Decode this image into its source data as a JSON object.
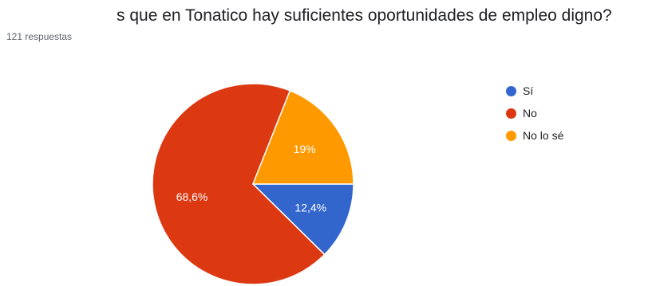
{
  "question": "s que en Tonatico hay suficientes oportunidades de empleo digno?",
  "responses": "121 respuestas",
  "colors": {
    "si": "#3366cc",
    "no": "#dc3912",
    "nolose": "#ff9900"
  },
  "chart_data": {
    "type": "pie",
    "title": "s que en Tonatico hay suficientes oportunidades de empleo digno?",
    "legend_position": "right",
    "slices": [
      {
        "label": "Sí",
        "value": 12.4,
        "display": "12,4%",
        "color": "#3366cc"
      },
      {
        "label": "No",
        "value": 68.6,
        "display": "68,6%",
        "color": "#dc3912"
      },
      {
        "label": "No lo sé",
        "value": 19,
        "display": "19%",
        "color": "#ff9900"
      }
    ]
  }
}
